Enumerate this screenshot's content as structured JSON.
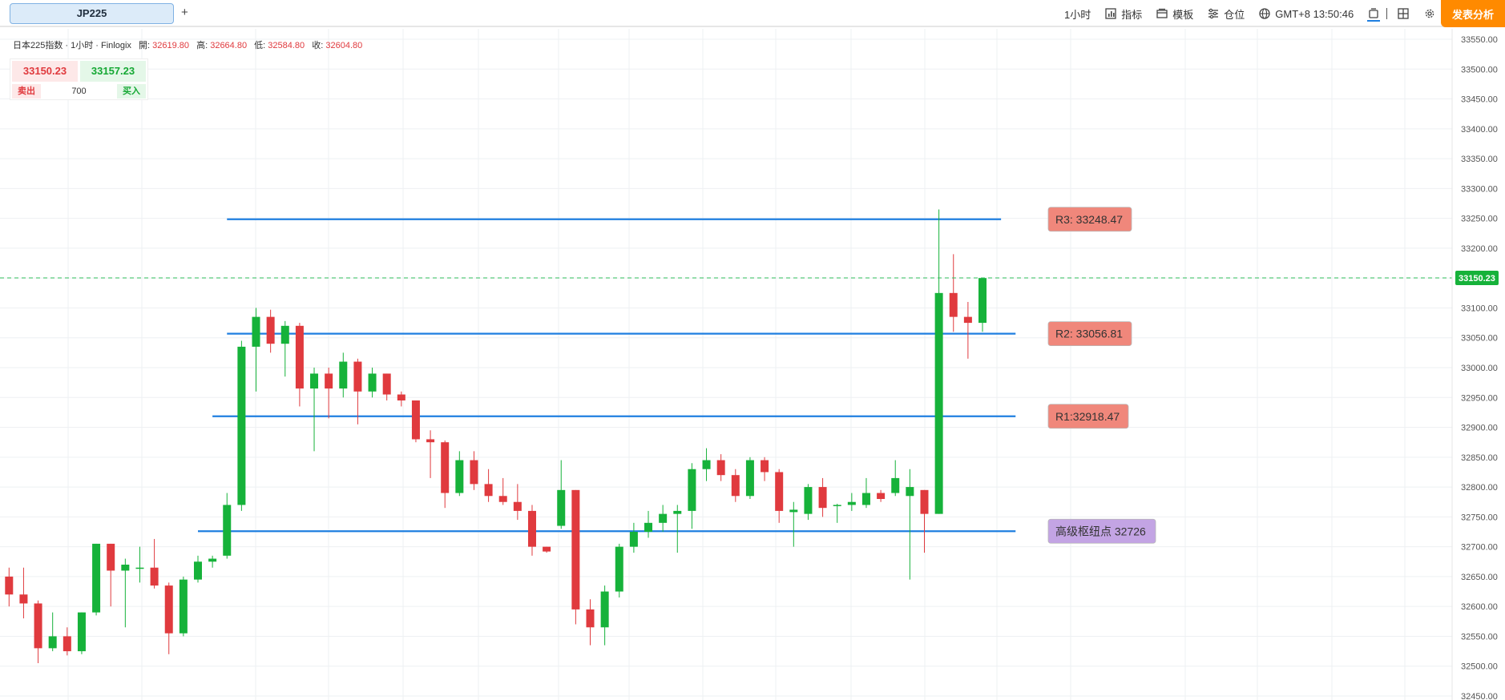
{
  "toolbar": {
    "symbol_tab": "JP225",
    "add_tab": "+",
    "timeframe": "1小时",
    "indicators": "指标",
    "templates": "模板",
    "positions": "仓位",
    "timezone_time": "GMT+8  13:50:46",
    "publish_button": "发表分析"
  },
  "legend": {
    "title": "日本225指数 · 1小时 · Finlogix",
    "open_label": "開:",
    "open": "32619.80",
    "high_label": "高:",
    "high": "32664.80",
    "low_label": "低:",
    "low": "32584.80",
    "close_label": "收:",
    "close": "32604.80"
  },
  "trade": {
    "sell_price": "33150.23",
    "buy_price": "33157.23",
    "sell_label": "卖出",
    "buy_label": "买入",
    "quantity": "700"
  },
  "colors": {
    "up": "#16b23a",
    "down": "#e03a3e",
    "level_line": "#1f7fe0",
    "resistance_box": "#f0877b",
    "pivot_box": "#c3a4e4",
    "cta": "#ff8a00"
  },
  "chart_data": {
    "type": "candlestick",
    "y_axis": {
      "min": 32450,
      "max": 33550,
      "step": 50,
      "ticks": [
        "32450.00",
        "32500.00",
        "32550.00",
        "32600.00",
        "32650.00",
        "32700.00",
        "32750.00",
        "32800.00",
        "32850.00",
        "32900.00",
        "32950.00",
        "33000.00",
        "33050.00",
        "33100.00",
        "33150.00",
        "33200.00",
        "33250.00",
        "33300.00",
        "33350.00",
        "33400.00",
        "33450.00",
        "33500.00",
        "33550.00"
      ]
    },
    "current_price": {
      "value": 33150.23,
      "label": "33150.23"
    },
    "levels": [
      {
        "name": "R3",
        "value": 33248.47,
        "label": "R3: 33248.47",
        "from_index": 15,
        "to_index": 68
      },
      {
        "name": "R2",
        "value": 33056.81,
        "label": "R2: 33056.81",
        "from_index": 15,
        "to_index": 69
      },
      {
        "name": "R1",
        "value": 32918.47,
        "label": "R1:32918.47",
        "from_index": 14,
        "to_index": 69
      },
      {
        "name": "Pivot",
        "value": 32726,
        "label": "高级枢纽点 32726",
        "from_index": 13,
        "to_index": 69
      }
    ],
    "candles": [
      {
        "o": 32650,
        "h": 32665,
        "l": 32600,
        "c": 32620
      },
      {
        "o": 32620,
        "h": 32665,
        "l": 32580,
        "c": 32605
      },
      {
        "o": 32605,
        "h": 32610,
        "l": 32505,
        "c": 32530
      },
      {
        "o": 32530,
        "h": 32590,
        "l": 32525,
        "c": 32550
      },
      {
        "o": 32550,
        "h": 32565,
        "l": 32518,
        "c": 32525
      },
      {
        "o": 32525,
        "h": 32590,
        "l": 32520,
        "c": 32590
      },
      {
        "o": 32590,
        "h": 32705,
        "l": 32585,
        "c": 32705
      },
      {
        "o": 32705,
        "h": 32705,
        "l": 32600,
        "c": 32660
      },
      {
        "o": 32660,
        "h": 32680,
        "l": 32565,
        "c": 32670
      },
      {
        "o": 32665,
        "h": 32700,
        "l": 32640,
        "c": 32665
      },
      {
        "o": 32665,
        "h": 32713,
        "l": 32630,
        "c": 32635
      },
      {
        "o": 32635,
        "h": 32640,
        "l": 32520,
        "c": 32555
      },
      {
        "o": 32555,
        "h": 32650,
        "l": 32550,
        "c": 32645
      },
      {
        "o": 32645,
        "h": 32685,
        "l": 32640,
        "c": 32675
      },
      {
        "o": 32675,
        "h": 32685,
        "l": 32665,
        "c": 32680
      },
      {
        "o": 32685,
        "h": 32790,
        "l": 32680,
        "c": 32770
      },
      {
        "o": 32770,
        "h": 33045,
        "l": 32760,
        "c": 33035
      },
      {
        "o": 33035,
        "h": 33100,
        "l": 32960,
        "c": 33085
      },
      {
        "o": 33085,
        "h": 33097,
        "l": 33025,
        "c": 33040
      },
      {
        "o": 33040,
        "h": 33078,
        "l": 32985,
        "c": 33070
      },
      {
        "o": 33070,
        "h": 33075,
        "l": 32935,
        "c": 32965
      },
      {
        "o": 32965,
        "h": 33000,
        "l": 32860,
        "c": 32990
      },
      {
        "o": 32990,
        "h": 33000,
        "l": 32915,
        "c": 32965
      },
      {
        "o": 32965,
        "h": 33025,
        "l": 32950,
        "c": 33010
      },
      {
        "o": 33010,
        "h": 33015,
        "l": 32905,
        "c": 32960
      },
      {
        "o": 32960,
        "h": 33000,
        "l": 32950,
        "c": 32990
      },
      {
        "o": 32990,
        "h": 32990,
        "l": 32945,
        "c": 32955
      },
      {
        "o": 32955,
        "h": 32960,
        "l": 32935,
        "c": 32945
      },
      {
        "o": 32945,
        "h": 32945,
        "l": 32875,
        "c": 32880
      },
      {
        "o": 32880,
        "h": 32895,
        "l": 32815,
        "c": 32875
      },
      {
        "o": 32875,
        "h": 32878,
        "l": 32765,
        "c": 32790
      },
      {
        "o": 32790,
        "h": 32860,
        "l": 32785,
        "c": 32845
      },
      {
        "o": 32845,
        "h": 32860,
        "l": 32795,
        "c": 32805
      },
      {
        "o": 32805,
        "h": 32830,
        "l": 32775,
        "c": 32785
      },
      {
        "o": 32785,
        "h": 32815,
        "l": 32770,
        "c": 32775
      },
      {
        "o": 32775,
        "h": 32805,
        "l": 32745,
        "c": 32760
      },
      {
        "o": 32760,
        "h": 32770,
        "l": 32685,
        "c": 32700
      },
      {
        "o": 32700,
        "h": 32700,
        "l": 32690,
        "c": 32692
      },
      {
        "o": 32735,
        "h": 32845,
        "l": 32730,
        "c": 32795
      },
      {
        "o": 32795,
        "h": 32795,
        "l": 32570,
        "c": 32595
      },
      {
        "o": 32595,
        "h": 32612,
        "l": 32535,
        "c": 32565
      },
      {
        "o": 32565,
        "h": 32635,
        "l": 32535,
        "c": 32625
      },
      {
        "o": 32625,
        "h": 32705,
        "l": 32615,
        "c": 32700
      },
      {
        "o": 32700,
        "h": 32740,
        "l": 32690,
        "c": 32725
      },
      {
        "o": 32725,
        "h": 32760,
        "l": 32715,
        "c": 32740
      },
      {
        "o": 32740,
        "h": 32770,
        "l": 32725,
        "c": 32755
      },
      {
        "o": 32755,
        "h": 32770,
        "l": 32690,
        "c": 32760
      },
      {
        "o": 32760,
        "h": 32840,
        "l": 32730,
        "c": 32830
      },
      {
        "o": 32830,
        "h": 32865,
        "l": 32810,
        "c": 32845
      },
      {
        "o": 32845,
        "h": 32855,
        "l": 32810,
        "c": 32820
      },
      {
        "o": 32820,
        "h": 32830,
        "l": 32775,
        "c": 32785
      },
      {
        "o": 32785,
        "h": 32850,
        "l": 32780,
        "c": 32845
      },
      {
        "o": 32845,
        "h": 32850,
        "l": 32810,
        "c": 32825
      },
      {
        "o": 32825,
        "h": 32830,
        "l": 32740,
        "c": 32760
      },
      {
        "o": 32758,
        "h": 32775,
        "l": 32700,
        "c": 32762
      },
      {
        "o": 32755,
        "h": 32805,
        "l": 32745,
        "c": 32800
      },
      {
        "o": 32800,
        "h": 32815,
        "l": 32750,
        "c": 32765
      },
      {
        "o": 32768,
        "h": 32772,
        "l": 32740,
        "c": 32770
      },
      {
        "o": 32770,
        "h": 32790,
        "l": 32760,
        "c": 32775
      },
      {
        "o": 32770,
        "h": 32815,
        "l": 32765,
        "c": 32790
      },
      {
        "o": 32790,
        "h": 32795,
        "l": 32775,
        "c": 32780
      },
      {
        "o": 32790,
        "h": 32845,
        "l": 32785,
        "c": 32815
      },
      {
        "o": 32785,
        "h": 32830,
        "l": 32645,
        "c": 32800
      },
      {
        "o": 32795,
        "h": 32795,
        "l": 32690,
        "c": 32755
      },
      {
        "o": 32755,
        "h": 33265,
        "l": 32755,
        "c": 33125
      },
      {
        "o": 33125,
        "h": 33190,
        "l": 33060,
        "c": 33085
      },
      {
        "o": 33085,
        "h": 33110,
        "l": 33015,
        "c": 33075
      },
      {
        "o": 33075,
        "h": 33150,
        "l": 33060,
        "c": 33150
      }
    ]
  }
}
